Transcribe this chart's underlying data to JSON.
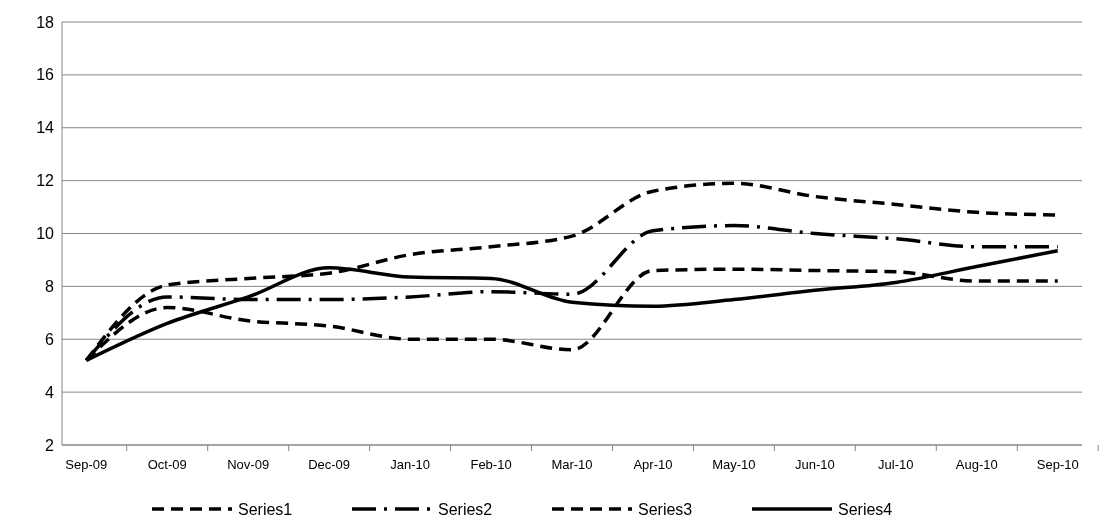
{
  "chart_data": {
    "type": "line",
    "categories": [
      "Sep-09",
      "Oct-09",
      "Nov-09",
      "Dec-09",
      "Jan-10",
      "Feb-10",
      "Mar-10",
      "Apr-10",
      "May-10",
      "Jun-10",
      "Jul-10",
      "Aug-10",
      "Sep-10"
    ],
    "series": [
      {
        "name": "Series1",
        "color": "#000000",
        "line_style": "dashed",
        "values": [
          5.2,
          8.05,
          8.3,
          8.5,
          9.2,
          9.5,
          9.9,
          11.6,
          11.9,
          11.4,
          11.1,
          10.8,
          10.7
        ]
      },
      {
        "name": "Series2",
        "color": "#000000",
        "line_style": "dashdot",
        "values": [
          5.2,
          7.6,
          7.5,
          7.5,
          7.6,
          7.8,
          7.7,
          10.1,
          10.3,
          10.0,
          9.8,
          9.5,
          9.5
        ]
      },
      {
        "name": "Series3",
        "color": "#000000",
        "line_style": "dashed",
        "values": [
          5.2,
          7.2,
          6.7,
          6.5,
          6.0,
          6.0,
          5.6,
          8.6,
          8.65,
          8.6,
          8.55,
          8.2,
          8.2
        ]
      },
      {
        "name": "Series4",
        "color": "#000000",
        "line_style": "solid",
        "values": [
          5.2,
          6.6,
          7.6,
          8.7,
          8.35,
          8.3,
          7.4,
          7.25,
          7.5,
          7.85,
          8.15,
          8.75,
          9.35
        ]
      }
    ],
    "ylim": [
      2,
      18
    ],
    "yticks": [
      2,
      4,
      6,
      8,
      10,
      12,
      14,
      16,
      18
    ],
    "grid": "y",
    "legend": "bottom"
  }
}
